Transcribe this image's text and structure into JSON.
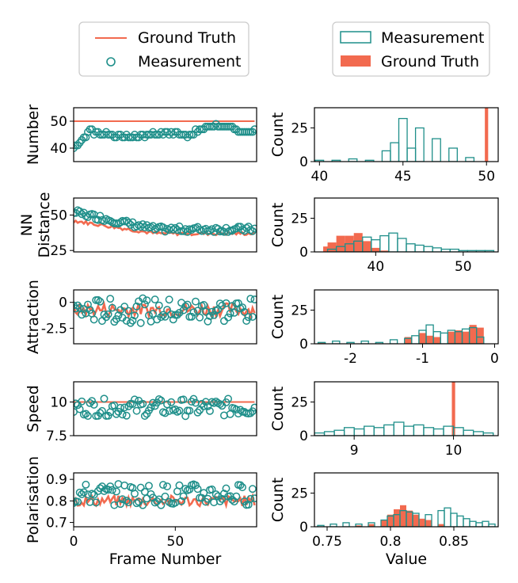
{
  "colors": {
    "ground_truth": "#f26a4f",
    "measurement": "#1f8f8a",
    "axis": "#000000"
  },
  "legend_left": {
    "items": [
      {
        "label": "Ground Truth",
        "kind": "line"
      },
      {
        "label": "Measurement",
        "kind": "circle"
      }
    ]
  },
  "legend_right": {
    "items": [
      {
        "label": "Measurement",
        "kind": "hollow-bar"
      },
      {
        "label": "Ground Truth",
        "kind": "filled-bar"
      }
    ]
  },
  "chart_data": [
    {
      "id": "number-ts",
      "type": "line",
      "ylabel": "Number",
      "xlim": [
        0,
        90
      ],
      "ylim": [
        35,
        55
      ],
      "yticks": [
        40,
        50
      ],
      "xticks": [],
      "ground_truth": 50,
      "measurement_start": 40,
      "measurement_mid": 45,
      "measurement_end": 46
    },
    {
      "id": "number-hist",
      "type": "bar",
      "ylabel": "Count",
      "xlim": [
        39.7,
        50.7
      ],
      "ylim": [
        0,
        40
      ],
      "yticks": [
        0,
        25
      ],
      "xticks": [
        40,
        45,
        50
      ],
      "measurement_bins": [
        [
          40,
          1
        ],
        [
          41,
          1
        ],
        [
          42,
          2
        ],
        [
          43,
          1
        ],
        [
          44,
          8
        ],
        [
          44.5,
          14
        ],
        [
          45,
          32
        ],
        [
          45.5,
          10
        ],
        [
          46,
          25
        ],
        [
          47,
          17
        ],
        [
          48,
          10
        ],
        [
          49,
          3
        ]
      ],
      "ground_truth_bins": [
        [
          50,
          90
        ]
      ]
    },
    {
      "id": "nn-ts",
      "type": "line",
      "ylabel": [
        "NN",
        "Distance"
      ],
      "xlim": [
        0,
        90
      ],
      "ylim": [
        24,
        62
      ],
      "yticks": [
        25,
        50
      ],
      "xticks": [],
      "ground_truth_start": 46,
      "ground_truth_end": 37,
      "measurement_start": 52,
      "measurement_end": 40
    },
    {
      "id": "nn-hist",
      "type": "bar",
      "ylabel": "Count",
      "xlim": [
        33,
        54
      ],
      "ylim": [
        0,
        40
      ],
      "yticks": [
        0,
        25
      ],
      "xticks": [
        40,
        50
      ],
      "measurement_bins": [
        [
          35,
          2
        ],
        [
          36,
          4
        ],
        [
          37,
          6
        ],
        [
          38,
          8
        ],
        [
          39,
          11
        ],
        [
          40,
          9
        ],
        [
          41,
          12
        ],
        [
          42,
          14
        ],
        [
          43,
          10
        ],
        [
          44,
          6
        ],
        [
          45,
          5
        ],
        [
          46,
          4
        ],
        [
          47,
          3
        ],
        [
          48,
          2
        ],
        [
          49,
          2
        ],
        [
          50,
          1
        ],
        [
          51,
          1
        ],
        [
          52,
          1
        ],
        [
          53,
          1
        ]
      ],
      "ground_truth_bins": [
        [
          34.5,
          4
        ],
        [
          35,
          7
        ],
        [
          36,
          12
        ],
        [
          37,
          12
        ],
        [
          38,
          14
        ],
        [
          39,
          8
        ],
        [
          40,
          3
        ],
        [
          41,
          1
        ]
      ]
    },
    {
      "id": "attraction-ts",
      "type": "line",
      "ylabel": "Attraction",
      "xlim": [
        0,
        90
      ],
      "ylim": [
        -4,
        1.2
      ],
      "yticks": [
        0.0,
        -2.5
      ],
      "xticks": [],
      "ground_truth": -0.7,
      "measurement_mean": -0.8
    },
    {
      "id": "attraction-hist",
      "type": "bar",
      "ylabel": "Count",
      "xlim": [
        -2.5,
        0.05
      ],
      "ylim": [
        0,
        40
      ],
      "yticks": [
        0,
        25
      ],
      "xticks": [
        -2,
        -1,
        0
      ],
      "measurement_bins": [
        [
          -2.4,
          1
        ],
        [
          -2.2,
          2
        ],
        [
          -2.0,
          1
        ],
        [
          -1.8,
          2
        ],
        [
          -1.6,
          1
        ],
        [
          -1.4,
          3
        ],
        [
          -1.2,
          4
        ],
        [
          -1.1,
          6
        ],
        [
          -1.0,
          10
        ],
        [
          -0.9,
          14
        ],
        [
          -0.8,
          9
        ],
        [
          -0.7,
          8
        ],
        [
          -0.6,
          10
        ],
        [
          -0.5,
          9
        ],
        [
          -0.4,
          11
        ],
        [
          -0.3,
          12
        ],
        [
          -0.2,
          5
        ]
      ],
      "ground_truth_bins": [
        [
          -2.4,
          1
        ],
        [
          -1.2,
          5
        ],
        [
          -1.0,
          8
        ],
        [
          -0.9,
          6
        ],
        [
          -0.8,
          5
        ],
        [
          -0.6,
          9
        ],
        [
          -0.5,
          10
        ],
        [
          -0.4,
          9
        ],
        [
          -0.3,
          14
        ],
        [
          -0.2,
          12
        ]
      ]
    },
    {
      "id": "speed-ts",
      "type": "line",
      "ylabel": "Speed",
      "xlim": [
        0,
        90
      ],
      "ylim": [
        7.5,
        11.5
      ],
      "yticks": [
        10.0,
        7.5
      ],
      "xticks": [],
      "ground_truth": 10,
      "measurement_mean": 9.6
    },
    {
      "id": "speed-hist",
      "type": "bar",
      "ylabel": "Count",
      "xlim": [
        8.6,
        10.45
      ],
      "ylim": [
        0,
        40
      ],
      "yticks": [
        0,
        25
      ],
      "xticks": [
        9,
        10
      ],
      "measurement_bins": [
        [
          8.65,
          2
        ],
        [
          8.75,
          3
        ],
        [
          8.85,
          4
        ],
        [
          8.95,
          6
        ],
        [
          9.05,
          5
        ],
        [
          9.15,
          7
        ],
        [
          9.25,
          6
        ],
        [
          9.35,
          8
        ],
        [
          9.45,
          10
        ],
        [
          9.55,
          7
        ],
        [
          9.65,
          8
        ],
        [
          9.75,
          6
        ],
        [
          9.85,
          5
        ],
        [
          9.95,
          7
        ],
        [
          10.05,
          6
        ],
        [
          10.15,
          4
        ],
        [
          10.25,
          3
        ],
        [
          10.35,
          2
        ]
      ],
      "ground_truth_bins": [
        [
          10,
          90
        ]
      ]
    },
    {
      "id": "polarisation-ts",
      "type": "line",
      "ylabel": "Polarisation",
      "xlim": [
        0,
        90
      ],
      "ylim": [
        0.68,
        0.93
      ],
      "yticks": [
        0.9,
        0.8,
        0.7
      ],
      "xticks": [
        0,
        50
      ],
      "xlabel": "Frame Number",
      "ground_truth": 0.8,
      "measurement_mean": 0.83
    },
    {
      "id": "polarisation-hist",
      "type": "bar",
      "ylabel": "Count",
      "xlim": [
        0.74,
        0.885
      ],
      "ylim": [
        0,
        40
      ],
      "yticks": [
        0,
        25
      ],
      "xticks": [
        0.75,
        0.8,
        0.85
      ],
      "xlabel": "Value",
      "measurement_bins": [
        [
          0.745,
          1
        ],
        [
          0.755,
          2
        ],
        [
          0.765,
          3
        ],
        [
          0.775,
          2
        ],
        [
          0.785,
          3
        ],
        [
          0.795,
          5
        ],
        [
          0.8,
          8
        ],
        [
          0.805,
          9
        ],
        [
          0.81,
          12
        ],
        [
          0.815,
          11
        ],
        [
          0.82,
          10
        ],
        [
          0.83,
          9
        ],
        [
          0.84,
          12
        ],
        [
          0.845,
          14
        ],
        [
          0.85,
          10
        ],
        [
          0.855,
          8
        ],
        [
          0.86,
          6
        ],
        [
          0.865,
          4
        ],
        [
          0.87,
          3
        ],
        [
          0.875,
          4
        ],
        [
          0.88,
          2
        ]
      ],
      "ground_truth_bins": [
        [
          0.775,
          1
        ],
        [
          0.785,
          2
        ],
        [
          0.795,
          5
        ],
        [
          0.8,
          9
        ],
        [
          0.805,
          13
        ],
        [
          0.81,
          16
        ],
        [
          0.815,
          12
        ],
        [
          0.82,
          9
        ],
        [
          0.825,
          6
        ],
        [
          0.83,
          5
        ],
        [
          0.84,
          2
        ]
      ]
    }
  ]
}
